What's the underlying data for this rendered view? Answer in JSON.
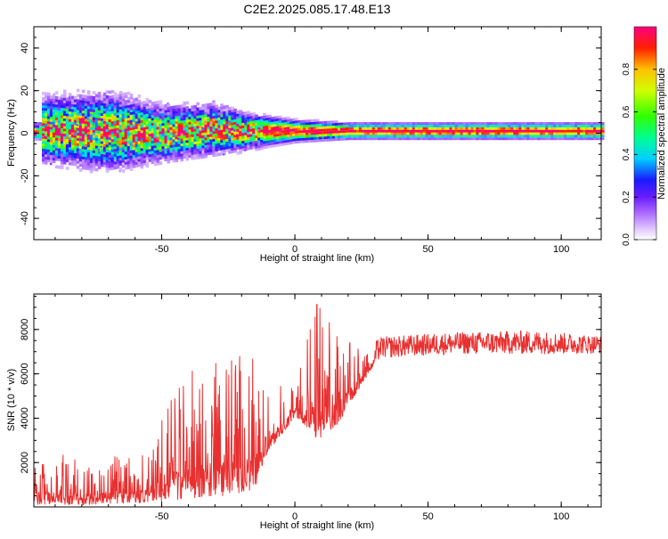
{
  "title": "C2E2.2025.085.17.48.E13",
  "chart_data": [
    {
      "type": "heatmap",
      "xlabel": "Height of straight line (km)",
      "ylabel": "Frequency (Hz)",
      "xlim": [
        -98,
        115
      ],
      "ylim": [
        -50,
        50
      ],
      "xticks": [
        -50,
        0,
        50,
        100
      ],
      "yticks": [
        -40,
        -20,
        0,
        20,
        40
      ],
      "colorbar": {
        "label": "Normalized spectral amplitude",
        "range": [
          0,
          1
        ],
        "ticks": [
          "0.0",
          "0.2",
          "0.4",
          "0.6",
          "0.8"
        ]
      },
      "description_points": [
        {
          "x": -95,
          "center_hz": 2,
          "spread_hz": 12
        },
        {
          "x": -70,
          "center_hz": 1,
          "spread_hz": 14
        },
        {
          "x": -50,
          "center_hz": 0,
          "spread_hz": 10
        },
        {
          "x": -30,
          "center_hz": 2,
          "spread_hz": 9
        },
        {
          "x": -15,
          "center_hz": 1,
          "spread_hz": 6
        },
        {
          "x": 0,
          "center_hz": 1,
          "spread_hz": 4
        },
        {
          "x": 20,
          "center_hz": 1,
          "spread_hz": 3
        },
        {
          "x": 60,
          "center_hz": 1,
          "spread_hz": 3
        },
        {
          "x": 115,
          "center_hz": 1,
          "spread_hz": 3
        }
      ]
    },
    {
      "type": "line",
      "xlabel": "Height of straight line (km)",
      "ylabel": "SNR (10 * v/v)",
      "xlim": [
        -98,
        115
      ],
      "ylim": [
        0,
        9600
      ],
      "xticks": [
        -50,
        0,
        50,
        100
      ],
      "yticks": [
        2000,
        4000,
        6000,
        8000
      ],
      "color": "#e83030",
      "envelope": [
        {
          "x": -98,
          "low": 100,
          "high": 2500
        },
        {
          "x": -75,
          "low": 100,
          "high": 2200
        },
        {
          "x": -55,
          "low": 200,
          "high": 2600
        },
        {
          "x": -45,
          "low": 300,
          "high": 5500
        },
        {
          "x": -35,
          "low": 400,
          "high": 6500
        },
        {
          "x": -25,
          "low": 500,
          "high": 7000
        },
        {
          "x": -15,
          "low": 800,
          "high": 7000
        },
        {
          "x": -10,
          "low": 2500,
          "high": 5200
        },
        {
          "x": 0,
          "low": 4000,
          "high": 6000
        },
        {
          "x": 8,
          "low": 3000,
          "high": 9500
        },
        {
          "x": 15,
          "low": 3500,
          "high": 8000
        },
        {
          "x": 25,
          "low": 5500,
          "high": 7200
        },
        {
          "x": 32,
          "low": 6800,
          "high": 7900
        },
        {
          "x": 60,
          "low": 7000,
          "high": 8100
        },
        {
          "x": 90,
          "low": 7000,
          "high": 8200
        },
        {
          "x": 115,
          "low": 7000,
          "high": 7900
        }
      ]
    }
  ]
}
